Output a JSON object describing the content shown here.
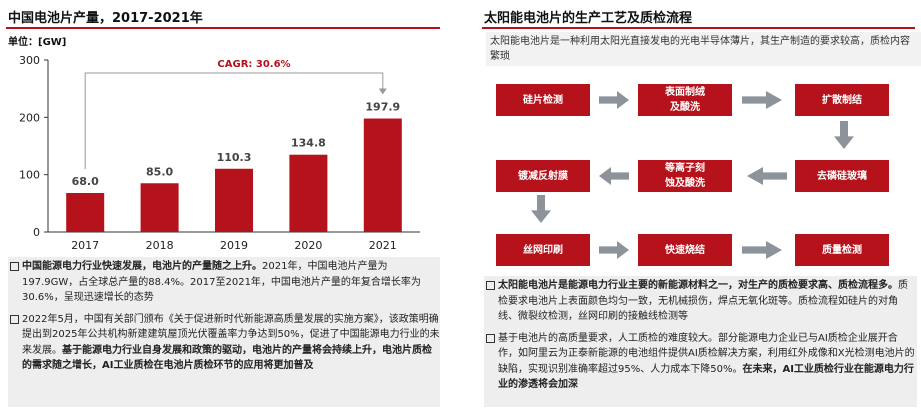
{
  "left": {
    "title": "中国电池片产量，2017-2021年",
    "unit": "单位：[GW]",
    "notes": [
      {
        "parts": [
          {
            "text": "中国能源电力行业快速发展，电池片的产量随之上升。",
            "bold": true
          },
          {
            "text": "2021年，中国电池片产量为197.9GW，占全球总产量的88.4%。2017至2021年，中国电池片产量的年复合增长率为30.6%，呈现迅速增长的态势",
            "bold": false
          }
        ]
      },
      {
        "parts": [
          {
            "text": "2022年5月，中国有关部门颁布《关于促进新时代新能源高质量发展的实施方案》，该政策明确提出到2025年公共机构新建建筑屋顶光伏覆盖率力争达到50%，促进了中国能源电力行业的未来发展。",
            "bold": false
          },
          {
            "text": "基于能源电力行业自身发展和政策的驱动，电池片的产量将会持续上升，电池片质检的需求随之增长，AI工业质检在电池片质检环节的应用将更加普及",
            "bold": true
          }
        ]
      }
    ]
  },
  "chart_data": {
    "type": "bar",
    "title": "中国电池片产量，2017-2021年",
    "ylabel": "单位：[GW]",
    "categories": [
      "2017",
      "2018",
      "2019",
      "2020",
      "2021"
    ],
    "values": [
      68.0,
      85.0,
      110.3,
      134.8,
      197.9
    ],
    "value_labels": [
      "68.0",
      "85.0",
      "110.3",
      "134.8",
      "197.9"
    ],
    "ylim": [
      0,
      300
    ],
    "yticks": [
      0,
      100,
      200,
      300
    ],
    "annotation": "CAGR: 30.6%",
    "bar_color": "#b5121b",
    "grid": false
  },
  "right": {
    "title": "太阳能电池片的生产工艺及质检流程",
    "intro": "太阳能电池片是一种利用太阳光直接发电的光电半导体薄片，其生产制造的要求较高，质检内容繁琐",
    "steps": [
      "硅片检测",
      "表面制绒\n及酸洗",
      "扩散制结",
      "去磷硅玻璃",
      "等离子刻\n蚀及酸洗",
      "镀减反射膜",
      "丝网印刷",
      "快速烧结",
      "质量检测"
    ],
    "notes": [
      {
        "parts": [
          {
            "text": "太阳能电池片是能源电力行业主要的新能源材料之一，对生产的质检要求高、质检流程多。",
            "bold": true
          },
          {
            "text": "质检要求电池片上表面颜色均匀一致，无机械损伤，焊点无氧化斑等。质检流程如硅片的对角线、微裂纹检测，丝网印刷的接触线检测等",
            "bold": false
          }
        ]
      },
      {
        "parts": [
          {
            "text": "基于电池片的高质量要求，人工质检的难度较大。部分能源电力企业已与AI质检企业展开合作，如阿里云为正泰新能源的电池组件提供AI质检解决方案，利用红外成像和X光检测电池片的缺陷，实现识别准确率超过95%、人力成本下降50%。",
            "bold": false
          },
          {
            "text": "在未来，AI工业质检行业在能源电力行业的渗透将会加深",
            "bold": true
          }
        ]
      }
    ]
  },
  "colors": {
    "accent": "#b5121b",
    "arrow": "#8c939b",
    "note_bg": "#eeeeee"
  }
}
